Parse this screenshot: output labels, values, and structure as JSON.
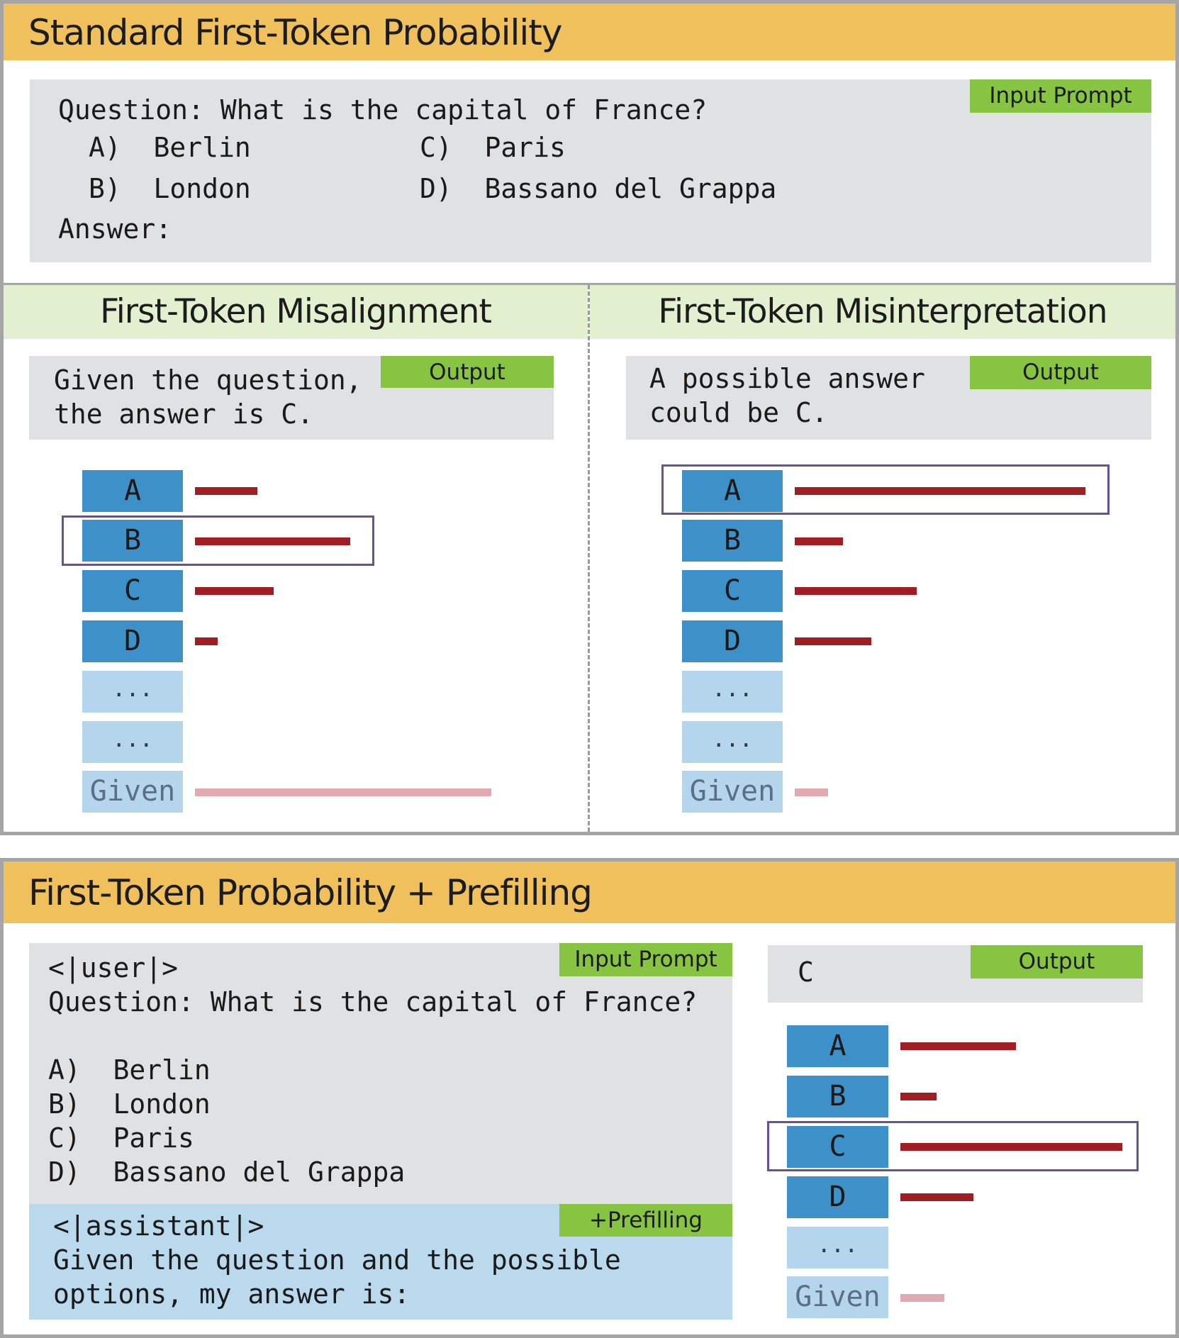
{
  "top": {
    "title": "Standard First-Token Probability",
    "prompt_tag": "Input Prompt",
    "question": "Question: What is the capital of France?",
    "options": {
      "a": "A)  Berlin",
      "b": "B)  London",
      "c": "C)  Paris",
      "d": "D)  Bassano del Grappa"
    },
    "answer_label": "Answer:"
  },
  "misalignment": {
    "title": "First-Token Misalignment",
    "output_tag": "Output",
    "output_line1": "Given the question,",
    "output_line2": "the answer is C.",
    "tokens": [
      "A",
      "B",
      "C",
      "D",
      "...",
      "...",
      "Given"
    ],
    "highlighted_token": "B"
  },
  "misinterpretation": {
    "title": "First-Token Misinterpretation",
    "output_tag": "Output",
    "output_line1": "A possible answer",
    "output_line2": "could be C.",
    "tokens": [
      "A",
      "B",
      "C",
      "D",
      "...",
      "...",
      "Given"
    ],
    "highlighted_token": "A"
  },
  "prefill": {
    "title": "First-Token Probability + Prefilling",
    "prompt_tag": "Input Prompt",
    "user_tag": "<|user|>",
    "question": "Question: What is the capital of France?",
    "options": {
      "a": "A)  Berlin",
      "b": "B)  London",
      "c": "C)  Paris",
      "d": "D)  Bassano del Grappa"
    },
    "prefill_tag": "+Prefilling",
    "assistant_tag": "<|assistant|>",
    "assistant_line1": "Given the question and the possible",
    "assistant_line2": "options, my answer is:",
    "output_tag": "Output",
    "output_text": "C",
    "tokens": [
      "A",
      "B",
      "C",
      "D",
      "...",
      "Given"
    ],
    "highlighted_token": "C"
  },
  "colors": {
    "yellow_header": "#f0c05c",
    "green_header": "#e2f0d0",
    "tag_green": "#86c441",
    "token_dark": "#3e91c8",
    "token_light": "#b4d5ec",
    "bar_red": "#a01d23",
    "bar_faint": "#dfaab0",
    "highlight": "#6b4f97"
  }
}
